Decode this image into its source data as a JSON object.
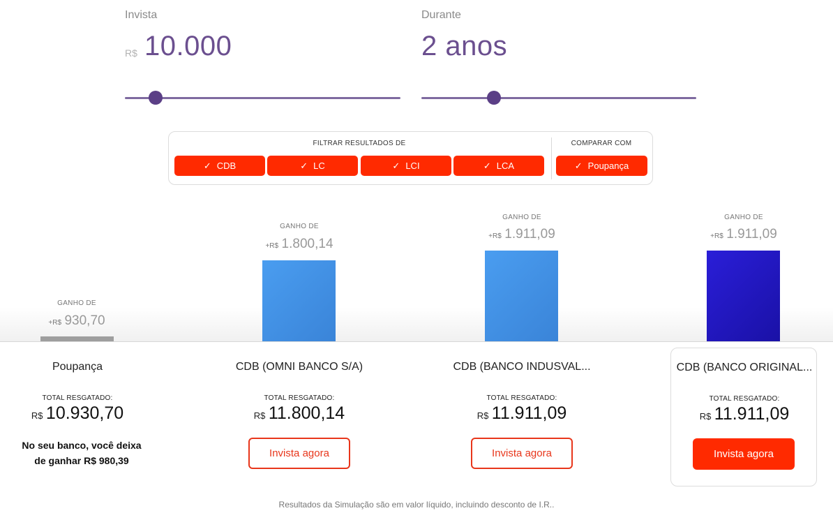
{
  "invest": {
    "label": "Invista",
    "currency": "R$",
    "value": "10.000",
    "slider_position": 0.11
  },
  "duration": {
    "label": "Durante",
    "value": "2 anos",
    "slider_position": 0.26
  },
  "filters": {
    "title": "FILTRAR RESULTADOS DE",
    "check_glyph": "✓",
    "chips": [
      {
        "label": "CDB",
        "checked": true
      },
      {
        "label": "LC",
        "checked": true
      },
      {
        "label": "LCI",
        "checked": true
      },
      {
        "label": "LCA",
        "checked": true
      }
    ],
    "compare_title": "COMPARAR COM",
    "compare_chip": {
      "label": "Poupança",
      "checked": true
    }
  },
  "results": [
    {
      "gain_label": "GANHO DE",
      "gain_prefix": "+R$",
      "gain_value": "930,70",
      "gain_number": 930.7,
      "name": "Poupança",
      "total_label": "TOTAL RESGATADO:",
      "total_prefix": "R$",
      "total_value": "10.930,70",
      "bar_color": "#9e9e9e"
    },
    {
      "gain_label": "GANHO DE",
      "gain_prefix": "+R$",
      "gain_value": "1.800,14",
      "gain_number": 1800.14,
      "name": "CDB (OMNI BANCO S/A)",
      "total_label": "TOTAL RESGATADO:",
      "total_prefix": "R$",
      "total_value": "11.800,14",
      "button_label": "Invista agora",
      "bar_color": "#4a9df0"
    },
    {
      "gain_label": "GANHO DE",
      "gain_prefix": "+R$",
      "gain_value": "1.911,09",
      "gain_number": 1911.09,
      "name": "CDB (BANCO INDUSVAL...",
      "total_label": "TOTAL RESGATADO:",
      "total_prefix": "R$",
      "total_value": "11.911,09",
      "button_label": "Invista agora",
      "bar_color": "#4a9df0"
    },
    {
      "gain_label": "GANHO DE",
      "gain_prefix": "+R$",
      "gain_value": "1.911,09",
      "gain_number": 1911.09,
      "name": "CDB (BANCO ORIGINAL...",
      "total_label": "TOTAL RESGATADO:",
      "total_prefix": "R$",
      "total_value": "11.911,09",
      "button_label": "Invista agora",
      "bar_color": "#2a1ed8",
      "highlighted": true
    }
  ],
  "warning": {
    "line1": "No seu banco, você deixa",
    "line2": "de ganhar R$ 980,39"
  },
  "footnote": "Resultados da Simulação são em valor líquido, incluindo desconto de I.R..",
  "colors": {
    "accent": "#ff2a00",
    "slider": "#7e6aa0",
    "value_text": "#6b4f8f"
  }
}
